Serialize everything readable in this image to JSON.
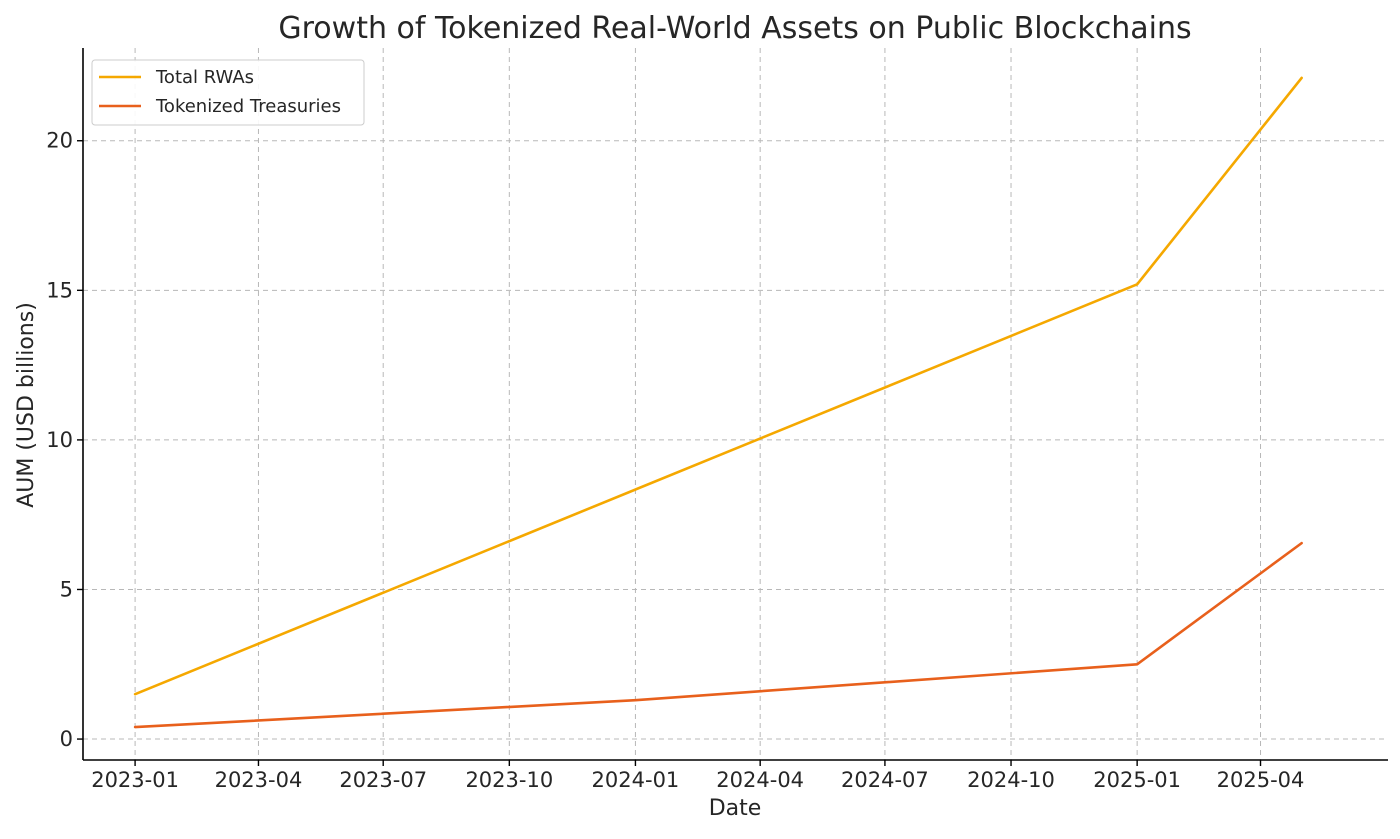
{
  "chart_data": {
    "type": "line",
    "title": "Growth of Tokenized Real-World Assets on Public Blockchains",
    "xlabel": "Date",
    "ylabel": "AUM (USD billions)",
    "x_ticks": [
      "2023-01",
      "2023-04",
      "2023-07",
      "2023-10",
      "2024-01",
      "2024-04",
      "2024-07",
      "2024-10",
      "2025-01",
      "2025-04"
    ],
    "y_ticks": [
      0,
      5,
      10,
      15,
      20
    ],
    "xlim": [
      "2022-11-24",
      "2025-07-03"
    ],
    "ylim": [
      -0.7,
      23.1
    ],
    "grid": true,
    "legend_position": "top-left",
    "series": [
      {
        "name": "Total RWAs",
        "color": "#f5a800",
        "points": [
          {
            "x": "2023-01-01",
            "y": 1.5
          },
          {
            "x": "2025-01-01",
            "y": 15.2
          },
          {
            "x": "2025-05-01",
            "y": 22.1
          }
        ]
      },
      {
        "name": "Tokenized Treasuries",
        "color": "#e8601c",
        "points": [
          {
            "x": "2023-01-01",
            "y": 0.4
          },
          {
            "x": "2024-01-01",
            "y": 1.3
          },
          {
            "x": "2025-01-01",
            "y": 2.5
          },
          {
            "x": "2025-05-01",
            "y": 6.55
          }
        ]
      }
    ]
  }
}
